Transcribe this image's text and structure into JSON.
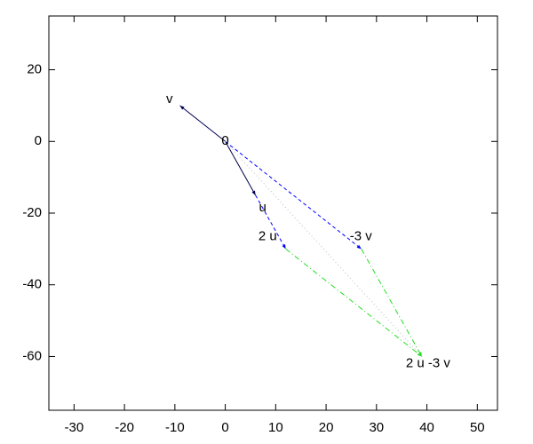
{
  "chart_data": {
    "type": "vector",
    "xlim": [
      -35,
      54
    ],
    "ylim": [
      -75,
      35
    ],
    "xticks": [
      -30,
      -20,
      -10,
      0,
      10,
      20,
      30,
      40,
      50
    ],
    "yticks": [
      -60,
      -40,
      -20,
      0,
      20
    ],
    "points": [
      {
        "label": "0",
        "x": 0,
        "y": 0
      },
      {
        "label": "v",
        "x": -9,
        "y": 10
      },
      {
        "label": "u",
        "x": 6,
        "y": -15
      },
      {
        "label": "2 u",
        "x": 12,
        "y": -30
      },
      {
        "label": "-3 v",
        "x": 27,
        "y": -30
      },
      {
        "label": "2 u -3 v",
        "x": 39,
        "y": -60
      }
    ],
    "series": [
      {
        "x": [
          0,
          6
        ],
        "y": [
          0,
          -15
        ],
        "color": "#000050",
        "dash": "solid",
        "arrow": true
      },
      {
        "x": [
          0,
          -9
        ],
        "y": [
          0,
          10
        ],
        "color": "#000050",
        "dash": "solid",
        "arrow": true
      },
      {
        "x": [
          0,
          27
        ],
        "y": [
          0,
          -30
        ],
        "color": "#0000ff",
        "dash": "dashed",
        "arrow": true
      },
      {
        "x": [
          6,
          12
        ],
        "y": [
          -15,
          -30
        ],
        "color": "#0000ff",
        "dash": "dashed",
        "arrow": true
      },
      {
        "x": [
          12,
          39
        ],
        "y": [
          -30,
          -60
        ],
        "color": "#22dd22",
        "dash": "dashdot",
        "arrow": true
      },
      {
        "x": [
          27,
          39
        ],
        "y": [
          -30,
          -60
        ],
        "color": "#22dd22",
        "dash": "dashdot",
        "arrow": true
      },
      {
        "x": [
          0,
          39
        ],
        "y": [
          0,
          -60
        ],
        "color": "#bbbbbb",
        "dash": "dotted",
        "arrow": false
      }
    ]
  }
}
